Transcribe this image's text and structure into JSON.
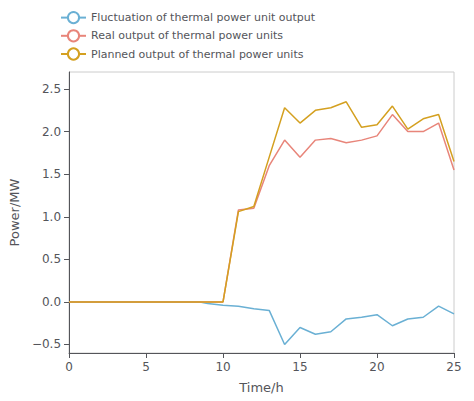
{
  "chart_data": {
    "type": "line",
    "xlabel": "Time/h",
    "ylabel": "Power/MW",
    "xlim": [
      0,
      25
    ],
    "ylim": [
      -0.6,
      2.7
    ],
    "xticks": [
      0,
      5,
      10,
      15,
      20,
      25
    ],
    "yticks": [
      {
        "value": -0.5,
        "label": "−0.5"
      },
      {
        "value": 0,
        "label": "0.0"
      },
      0.5,
      {
        "value": 1.0,
        "label": "1.0"
      },
      1.5,
      {
        "value": 2.0,
        "label": "2.0"
      },
      2.5
    ],
    "grid": false,
    "legend": "upper left",
    "x": [
      0,
      1,
      2,
      3,
      4,
      5,
      6,
      7,
      8,
      8.5,
      9,
      10,
      11,
      12,
      13,
      14,
      15,
      16,
      17,
      18,
      19,
      20,
      21,
      22,
      23,
      24,
      25
    ],
    "series": [
      {
        "name": "Fluctuation of thermal power unit output",
        "color": "#6ab0d4",
        "values": [
          0,
          0,
          0,
          0,
          0,
          0,
          0,
          0,
          0,
          0,
          -0.02,
          -0.04,
          -0.05,
          -0.08,
          -0.1,
          -0.5,
          -0.3,
          -0.38,
          -0.35,
          -0.2,
          -0.18,
          -0.15,
          -0.28,
          -0.2,
          -0.18,
          -0.05,
          -0.14
        ]
      },
      {
        "name": "Real output of thermal power units",
        "color": "#e8857a",
        "values": [
          0,
          0,
          0,
          0,
          0,
          0,
          0,
          0,
          0,
          0,
          0.0,
          0.0,
          1.08,
          1.1,
          1.6,
          1.9,
          1.7,
          1.9,
          1.92,
          1.87,
          1.9,
          1.95,
          2.2,
          2.0,
          2.0,
          2.1,
          1.55
        ]
      },
      {
        "name": "Planned output of thermal power units",
        "color": "#d4a020",
        "values": [
          0,
          0,
          0,
          0,
          0,
          0,
          0,
          0,
          0,
          0,
          0.0,
          0.0,
          1.06,
          1.12,
          1.7,
          2.28,
          2.1,
          2.25,
          2.28,
          2.35,
          2.05,
          2.08,
          2.3,
          2.03,
          2.15,
          2.2,
          1.65
        ]
      }
    ]
  }
}
